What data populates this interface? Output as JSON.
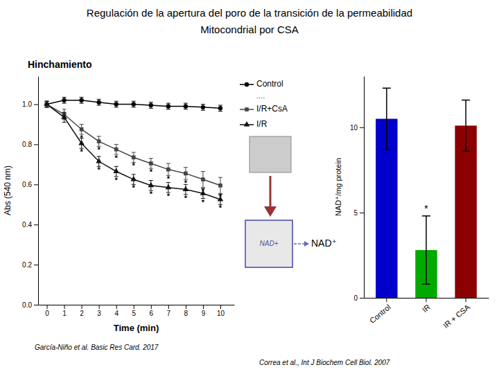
{
  "chart_data": [
    {
      "type": "line",
      "title": "Regulación de la apertura del poro de la transición de la permeabilidad",
      "subtitle": "Mitocondrial por CSA",
      "xlabel": "Time (min)",
      "ylabel": "Abs (540 nm)",
      "x": [
        0,
        1,
        2,
        3,
        4,
        5,
        6,
        7,
        8,
        9,
        10
      ],
      "series": [
        {
          "name": "Control",
          "color": "black",
          "marker": "circle",
          "line_style": "solid",
          "values": [
            1.0,
            1.02,
            1.02,
            1.01,
            1.0,
            1.0,
            0.995,
            0.99,
            0.99,
            0.985,
            0.98
          ],
          "errors": [
            0.015,
            0.015,
            0.015,
            0.015,
            0.015,
            0.015,
            0.015,
            0.015,
            0.015,
            0.015,
            0.015
          ]
        },
        {
          "name": "I/R+CsA",
          "color": "#444444",
          "marker": "square",
          "line_style": "solid",
          "values": [
            1.0,
            0.95,
            0.875,
            0.815,
            0.775,
            0.735,
            0.705,
            0.675,
            0.655,
            0.625,
            0.595
          ],
          "errors": [
            0.015,
            0.025,
            0.025,
            0.025,
            0.025,
            0.025,
            0.025,
            0.03,
            0.03,
            0.04,
            0.04
          ],
          "annotations": [
            {
              "x": 2,
              "text": "*"
            },
            {
              "x": 3,
              "text": "*"
            },
            {
              "x": 4,
              "text": "*"
            },
            {
              "x": 5,
              "text": "*"
            },
            {
              "x": 6,
              "text": "*"
            },
            {
              "x": 7,
              "text": "*"
            },
            {
              "x": 8,
              "text": "*"
            },
            {
              "x": 9,
              "text": "*"
            },
            {
              "x": 10,
              "text": "*"
            }
          ]
        },
        {
          "name": "I/R",
          "color": "#111111",
          "marker": "triangle",
          "line_style": "solid",
          "values": [
            1.0,
            0.935,
            0.805,
            0.715,
            0.665,
            0.625,
            0.595,
            0.585,
            0.575,
            0.555,
            0.525
          ],
          "errors": [
            0.015,
            0.025,
            0.025,
            0.025,
            0.025,
            0.025,
            0.025,
            0.025,
            0.025,
            0.025,
            0.025
          ],
          "annotations": [
            {
              "x": 2,
              "text": "*"
            },
            {
              "x": 3,
              "text": "*"
            },
            {
              "x": 4,
              "text": "*"
            },
            {
              "x": 5,
              "text": "*"
            },
            {
              "x": 6,
              "text": "*"
            },
            {
              "x": 7,
              "text": "*"
            },
            {
              "x": 8,
              "text": "*"
            },
            {
              "x": 9,
              "text": "*"
            },
            {
              "x": 10,
              "text": "*"
            }
          ]
        }
      ],
      "xlim": [
        -0.5,
        10.8
      ],
      "xticks": [
        0,
        1,
        2,
        3,
        4,
        5,
        6,
        7,
        8,
        9,
        10
      ],
      "ylim": [
        0,
        1.14
      ],
      "yticks": [
        {
          "value": 0,
          "label": "0.0"
        },
        0.2,
        0.4,
        0.6,
        0.8,
        {
          "value": 1,
          "label": "1.0"
        }
      ],
      "grid": false,
      "legend": "right",
      "annotations": [
        {
          "text": "Hinchamiento"
        },
        {
          "text": "...."
        },
        {
          "text": "García-Niño et al. Basic Res Card. 2017"
        }
      ]
    },
    {
      "type": "bar",
      "ylabel": "NAD⁺/mg protein",
      "categories": [
        "Control",
        "IR",
        "IR + CSA"
      ],
      "values": [
        10.5,
        2.8,
        10.1
      ],
      "errors": [
        1.8,
        2.0,
        1.5
      ],
      "colors": [
        "#0000cc",
        "#00aa00",
        "#8b0000"
      ],
      "ylim": [
        0,
        13
      ],
      "yticks": [
        0,
        5,
        10
      ],
      "grid": false,
      "annotations": [
        {
          "x": "IR",
          "text": "*"
        },
        {
          "text": "NAD+"
        },
        {
          "text": "NAD⁺"
        },
        {
          "text": "Correa et al., Int J Biochem Cell Biol. 2007"
        }
      ]
    }
  ]
}
